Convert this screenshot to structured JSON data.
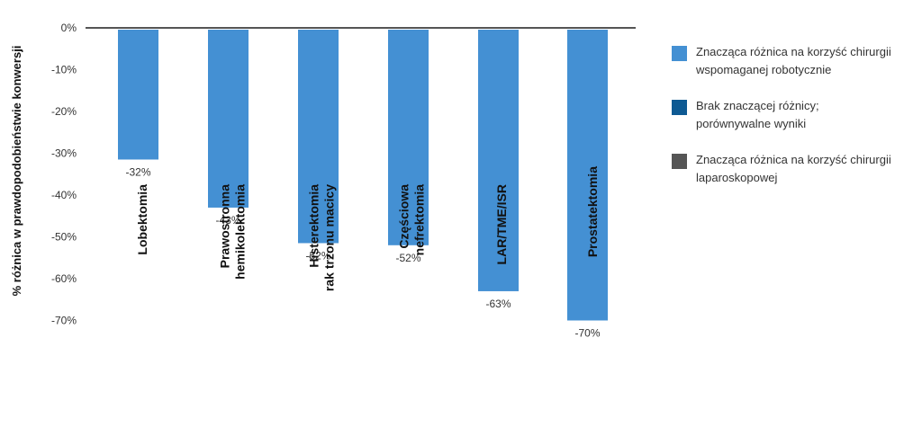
{
  "chart_data": {
    "type": "bar",
    "ylabel": "% różnica w prawdopodobieństwie konwersji",
    "xlabel": "",
    "ylim": [
      -70,
      0
    ],
    "yticks": [
      {
        "value": 0,
        "label": "0%"
      },
      {
        "value": -10,
        "label": "-10%"
      },
      {
        "value": -20,
        "label": "-20%"
      },
      {
        "value": -30,
        "label": "-30%"
      },
      {
        "value": -40,
        "label": "-40%"
      },
      {
        "value": -50,
        "label": "-50%"
      },
      {
        "value": -60,
        "label": "-60%"
      },
      {
        "value": -70,
        "label": "-70%"
      }
    ],
    "grid": false,
    "legend_position": "right",
    "categories": [
      [
        "Lobektomia"
      ],
      [
        "Prawostronna",
        "hemikolektomia"
      ],
      [
        "Histerektomia",
        "rak trzonu macicy"
      ],
      [
        "Częściowa",
        "nefrektomia"
      ],
      [
        "LAR/TME/ISR"
      ],
      [
        "Prostatektomia"
      ]
    ],
    "values": [
      -31.5,
      -43,
      -51.5,
      -52,
      -63,
      -70
    ],
    "data_labels": [
      "-32%",
      "-43%",
      "-52%",
      "-52%",
      "-63%",
      "-70%"
    ],
    "bar_color": "#4490d3",
    "legend": [
      {
        "lines": [
          "Znacząca różnica na korzyść chirurgii",
          "wspomaganej robotycznie"
        ],
        "color": "#4490d3"
      },
      {
        "lines": [
          "Brak znaczącej różnicy;",
          "porównywalne wyniki"
        ],
        "color": "#0e5a93"
      },
      {
        "lines": [
          "Znacząca różnica na korzyść chirurgii",
          "laparoskopowej"
        ],
        "color": "#555555"
      }
    ]
  }
}
